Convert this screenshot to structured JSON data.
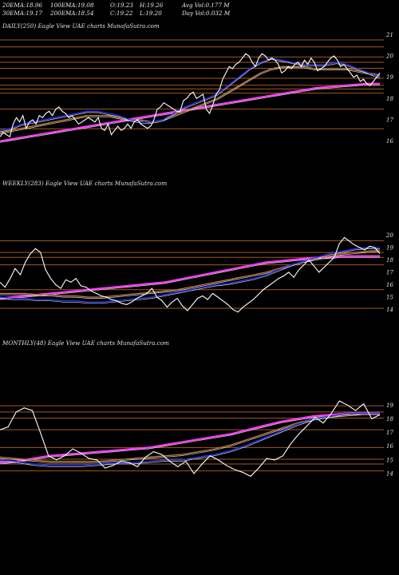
{
  "header": {
    "row1": [
      {
        "label": "20EMA:",
        "value": "18.96"
      },
      {
        "label": "100EMA:",
        "value": "19.08"
      },
      {
        "label": "O:",
        "value": "19.23"
      },
      {
        "label": "H:",
        "value": "19.26"
      },
      {
        "label": "Avg Vol:",
        "value": "0.177 M"
      }
    ],
    "row2": [
      {
        "label": "30EMA:",
        "value": "19.17"
      },
      {
        "label": "200EMA:",
        "value": "18.54"
      },
      {
        "label": "C:",
        "value": "19.22"
      },
      {
        "label": "L:",
        "value": "19.20"
      },
      {
        "label": "Day Vol:",
        "value": "0.032 M"
      }
    ]
  },
  "colors": {
    "background": "#000000",
    "price": "#ffffff",
    "ema_short": "#2030ff",
    "ema_long": "#ff3cff",
    "ema_mid": "#c07838",
    "gridline": "#a05a20"
  },
  "panels": [
    {
      "label": "DAILY(250) Eagle  View  UAE charts MunafaSutra.com"
    },
    {
      "label": "WEEKLY(283) Eagle  View  UAE charts MunafaSutra.com"
    },
    {
      "label": "MONTHLY(48) Eagle  View  UAE charts MunafaSutra.com"
    }
  ],
  "chart_data": [
    {
      "type": "line",
      "title": "DAILY(250) Eagle  View  UAE charts MunafaSutra.com",
      "ylim": [
        15.5,
        21.2
      ],
      "yticks": [
        "21",
        "20",
        "19",
        "18",
        "17",
        "16"
      ],
      "gridlines": [
        20.75,
        20.42,
        19.95,
        19.7,
        19.42,
        18.95,
        18.62,
        18.45,
        18.25,
        17.5,
        16.58
      ],
      "series": [
        {
          "role": "price",
          "values": [
            16.2,
            16.4,
            16.3,
            16.2,
            16.8,
            17.1,
            16.9,
            17.2,
            16.6,
            16.9,
            17.0,
            16.8,
            17.2,
            17.1,
            17.3,
            17.4,
            17.2,
            17.5,
            17.6,
            17.4,
            17.3,
            17.1,
            17.2,
            17.0,
            16.8,
            16.9,
            17.0,
            17.1,
            17.0,
            16.9,
            17.1,
            16.6,
            16.5,
            16.8,
            16.3,
            16.5,
            16.7,
            16.5,
            16.6,
            16.8,
            16.6,
            16.9,
            17.0,
            16.8,
            16.7,
            16.6,
            16.7,
            17.0,
            17.5,
            17.6,
            17.8,
            17.7,
            17.6,
            17.5,
            17.4,
            17.4,
            17.9,
            18.0,
            18.2,
            18.3,
            18.0,
            18.1,
            18.2,
            17.5,
            17.3,
            17.7,
            18.2,
            18.4,
            18.9,
            19.2,
            19.5,
            19.4,
            19.6,
            19.7,
            19.9,
            20.1,
            20.0,
            19.7,
            19.5,
            19.9,
            20.1,
            20.0,
            19.8,
            19.9,
            19.8,
            19.6,
            19.2,
            19.3,
            19.5,
            19.4,
            19.6,
            19.7,
            19.5,
            19.8,
            19.6,
            19.9,
            19.7,
            19.3,
            19.4,
            19.5,
            19.7,
            19.9,
            20.0,
            19.8,
            19.5,
            19.6,
            19.4,
            19.2,
            19.0,
            19.1,
            18.8,
            18.9,
            18.7,
            18.6,
            18.8,
            19.0,
            19.2
          ]
        },
        {
          "role": "ema_short",
          "values": [
            16.5,
            16.6,
            16.8,
            16.9,
            17.0,
            17.1,
            17.2,
            17.3,
            17.4,
            17.4,
            17.3,
            17.2,
            17.0,
            16.9,
            16.9,
            17.0,
            17.3,
            17.6,
            17.8,
            18.0,
            18.2,
            18.6,
            19.0,
            19.4,
            19.7,
            19.9,
            19.8,
            19.7,
            19.6,
            19.6,
            19.6,
            19.7,
            19.6,
            19.4,
            19.2,
            19.0
          ]
        },
        {
          "role": "ema_mid",
          "values": [
            16.4,
            16.5,
            16.6,
            16.7,
            16.8,
            16.9,
            17.0,
            17.1,
            17.2,
            17.2,
            17.2,
            17.1,
            17.0,
            17.0,
            16.9,
            17.0,
            17.2,
            17.4,
            17.6,
            17.8,
            18.0,
            18.3,
            18.6,
            18.9,
            19.2,
            19.4,
            19.5,
            19.5,
            19.5,
            19.4,
            19.4,
            19.4,
            19.4,
            19.3,
            19.2,
            19.1
          ]
        },
        {
          "role": "ema_long",
          "values": [
            16.0,
            16.1,
            16.2,
            16.3,
            16.4,
            16.5,
            16.6,
            16.7,
            16.8,
            16.9,
            17.0,
            17.1,
            17.2,
            17.3,
            17.4,
            17.5,
            17.6,
            17.7,
            17.8,
            17.9,
            18.0,
            18.1,
            18.2,
            18.3,
            18.4,
            18.5,
            18.55,
            18.6,
            18.65,
            18.7,
            18.7
          ]
        }
      ]
    },
    {
      "type": "line",
      "title": "WEEKLY(283) Eagle  View  UAE charts MunafaSutra.com",
      "ylim": [
        13.2,
        20.6
      ],
      "yticks": [
        "20",
        "19",
        "18",
        "17",
        "16",
        "15",
        "14"
      ],
      "gridlines": [
        19.55,
        18.6,
        18.2,
        17.6,
        15.6,
        14.1
      ],
      "series": [
        {
          "role": "price",
          "values": [
            16.2,
            15.8,
            16.5,
            17.3,
            16.8,
            17.8,
            18.5,
            18.9,
            18.6,
            17.2,
            16.5,
            16.0,
            15.7,
            16.4,
            16.2,
            16.5,
            15.9,
            15.8,
            15.5,
            15.3,
            15.1,
            15.0,
            14.8,
            14.7,
            14.5,
            14.4,
            14.6,
            14.9,
            15.1,
            15.3,
            15.7,
            15.0,
            14.7,
            14.2,
            14.6,
            14.9,
            14.3,
            13.9,
            14.4,
            14.9,
            15.1,
            14.8,
            15.3,
            15.0,
            14.7,
            14.4,
            14.0,
            13.8,
            14.2,
            14.5,
            14.8,
            15.2,
            15.6,
            15.9,
            16.2,
            16.5,
            16.7,
            17.0,
            16.6,
            17.2,
            17.6,
            18.0,
            17.5,
            17.0,
            17.4,
            17.8,
            18.2,
            19.3,
            19.8,
            19.5,
            19.2,
            19.0,
            18.8,
            19.1,
            19.0,
            18.5
          ]
        },
        {
          "role": "ema_short",
          "values": [
            15.0,
            14.9,
            14.9,
            14.8,
            14.8,
            14.7,
            14.7,
            14.6,
            14.6,
            14.7,
            14.8,
            14.9,
            15.0,
            15.2,
            15.4,
            15.6,
            15.8,
            16.0,
            16.1,
            16.3,
            16.5,
            16.8,
            17.2,
            17.6,
            17.9,
            18.2,
            18.5,
            18.7,
            18.9,
            19.0,
            19.0
          ]
        },
        {
          "role": "ema_mid",
          "values": [
            15.3,
            15.3,
            15.3,
            15.2,
            15.2,
            15.1,
            15.1,
            15.0,
            15.0,
            15.1,
            15.2,
            15.3,
            15.4,
            15.5,
            15.6,
            15.8,
            16.0,
            16.2,
            16.4,
            16.6,
            16.8,
            17.0,
            17.3,
            17.6,
            17.9,
            18.1,
            18.3,
            18.5,
            18.6,
            18.7,
            18.8
          ]
        },
        {
          "role": "ema_long",
          "values": [
            14.9,
            15.0,
            15.1,
            15.2,
            15.3,
            15.4,
            15.5,
            15.6,
            15.7,
            15.8,
            15.9,
            16.0,
            16.1,
            16.2,
            16.4,
            16.6,
            16.8,
            17.0,
            17.2,
            17.4,
            17.6,
            17.8,
            17.9,
            18.0,
            18.1,
            18.2,
            18.2,
            18.3,
            18.3,
            18.3,
            18.3
          ]
        }
      ]
    },
    {
      "type": "line",
      "title": "MONTHLY(48) Eagle  View  UAE charts MunafaSutra.com",
      "ylim": [
        13.3,
        20.3
      ],
      "yticks": [
        "19",
        "18",
        "17",
        "16",
        "15",
        "14"
      ],
      "gridlines": [
        18.95,
        18.5,
        18.05,
        17.2,
        15.9,
        15.05,
        14.7,
        14.2
      ],
      "series": [
        {
          "role": "price",
          "values": [
            17.2,
            17.4,
            18.5,
            18.8,
            18.6,
            17.0,
            15.3,
            15.0,
            15.3,
            15.8,
            15.5,
            15.1,
            15.0,
            14.4,
            14.6,
            14.9,
            14.8,
            14.5,
            15.2,
            15.6,
            15.4,
            14.9,
            14.5,
            14.9,
            14.0,
            14.7,
            15.3,
            15.0,
            14.6,
            14.3,
            14.1,
            13.8,
            14.4,
            15.1,
            15.0,
            15.3,
            16.2,
            16.9,
            17.5,
            18.1,
            17.7,
            18.4,
            19.3,
            19.0,
            18.6,
            19.1,
            18.0,
            18.3
          ]
        },
        {
          "role": "ema_short",
          "values": [
            15.0,
            14.9,
            14.7,
            14.6,
            14.6,
            14.6,
            14.7,
            14.8,
            14.8,
            14.9,
            15.0,
            15.0,
            15.2,
            15.4,
            15.7,
            16.1,
            16.6,
            17.1,
            17.6,
            18.0,
            18.2,
            18.4,
            18.4,
            18.4
          ]
        },
        {
          "role": "ema_mid",
          "values": [
            15.2,
            15.1,
            15.0,
            14.9,
            14.9,
            14.9,
            14.9,
            15.0,
            15.1,
            15.2,
            15.3,
            15.4,
            15.6,
            15.8,
            16.1,
            16.5,
            16.9,
            17.3,
            17.7,
            18.0,
            18.2,
            18.3,
            18.4,
            18.4
          ]
        },
        {
          "role": "ema_long",
          "values": [
            14.8,
            14.9,
            15.1,
            15.3,
            15.4,
            15.5,
            15.6,
            15.7,
            15.8,
            15.9,
            16.1,
            16.3,
            16.5,
            16.7,
            16.9,
            17.2,
            17.5,
            17.8,
            18.0,
            18.2,
            18.3,
            18.4,
            18.4,
            18.4
          ]
        }
      ]
    }
  ]
}
